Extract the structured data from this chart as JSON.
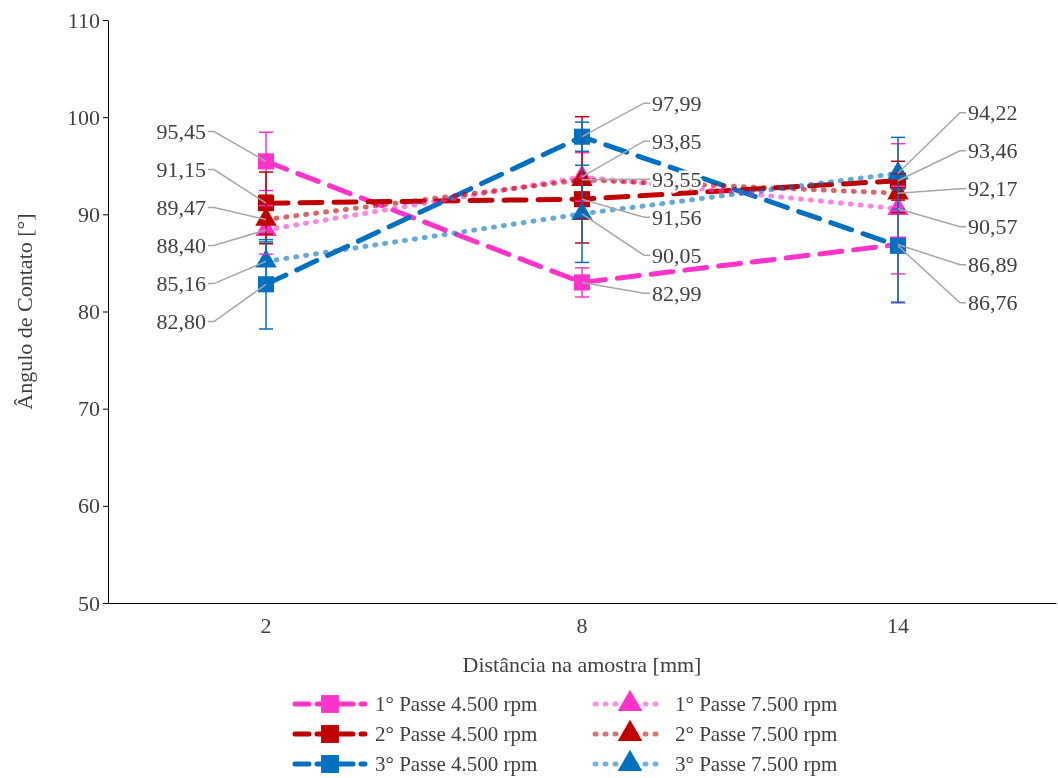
{
  "chart_data": {
    "type": "line",
    "xlabel": "Distância na amostra [mm]",
    "ylabel": "Ângulo de Contato [°]",
    "categories": [
      "2",
      "8",
      "14"
    ],
    "ylim": [
      50,
      110
    ],
    "yticks": [
      50,
      60,
      70,
      80,
      90,
      100,
      110
    ],
    "grid": false,
    "legend": "bottom",
    "series": [
      {
        "name": "1° Passe 4.500 rpm",
        "color": "#ff33cc",
        "marker": "square",
        "line_style": "dashed",
        "values": [
          95.45,
          82.99,
          86.89
        ],
        "value_labels": [
          "95,45",
          "82,99",
          "86,89"
        ],
        "errors": [
          3.0,
          1.5,
          6.0
        ]
      },
      {
        "name": "1° Passe 7.500 rpm",
        "color": "#ff33cc",
        "marker": "triangle",
        "line_style": "dotted",
        "values": [
          88.4,
          93.85,
          90.57
        ],
        "value_labels": [
          "88,40",
          "93,85",
          "90,57"
        ],
        "errors": [
          2.5,
          2.5,
          6.7
        ]
      },
      {
        "name": "2° Passe 4.500 rpm",
        "color": "#c00000",
        "marker": "square",
        "line_style": "dashed",
        "values": [
          91.15,
          91.56,
          93.46
        ],
        "value_labels": [
          "91,15",
          "91,56",
          "93,46"
        ],
        "errors": [
          3.2,
          2.0,
          2.0
        ]
      },
      {
        "name": "2° Passe 7.500 rpm",
        "color": "#c00000",
        "marker": "triangle",
        "line_style": "dotted",
        "values": [
          89.47,
          93.55,
          92.17
        ],
        "value_labels": [
          "89,47",
          "93,55",
          "92,17"
        ],
        "errors": [
          2.5,
          6.5,
          2.0
        ]
      },
      {
        "name": "3° Passe 4.500 rpm",
        "color": "#0070c0",
        "marker": "square",
        "line_style": "dashed",
        "values": [
          82.8,
          97.99,
          86.76
        ],
        "value_labels": [
          "82,80",
          "97,99",
          "86,76"
        ],
        "errors": [
          4.6,
          1.5,
          5.8
        ]
      },
      {
        "name": "3° Passe 7.500 rpm",
        "color": "#0070c0",
        "marker": "triangle",
        "line_style": "dotted",
        "values": [
          85.16,
          90.05,
          94.22
        ],
        "value_labels": [
          "85,16",
          "90,05",
          "94,22"
        ],
        "errors": [
          2.0,
          5.0,
          3.7
        ]
      }
    ]
  }
}
